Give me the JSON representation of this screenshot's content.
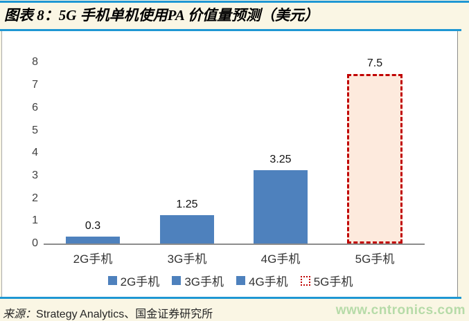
{
  "header": {
    "title": "图表 8：5G 手机单机使用PA 价值量预测（美元）"
  },
  "footer": {
    "source_prefix": "来源：",
    "source_body": "Strategy Analytics、国金证券研究所",
    "watermark": "www.cntronics.com"
  },
  "chart_data": {
    "type": "bar",
    "title": "5G 手机单机使用PA 价值量预测（美元）",
    "categories": [
      "2G手机",
      "3G手机",
      "4G手机",
      "5G手机"
    ],
    "values": [
      0.3,
      1.25,
      3.25,
      7.5
    ],
    "value_labels": [
      "0.3",
      "1.25",
      "3.25",
      "7.5"
    ],
    "xlabel": "",
    "ylabel": "",
    "ylim": [
      0,
      8
    ],
    "yticks": [
      0,
      1,
      2,
      3,
      4,
      5,
      6,
      7,
      8
    ],
    "grid": false,
    "legend_position": "bottom",
    "legend": [
      {
        "label": "2G手机",
        "style": "solid"
      },
      {
        "label": "3G手机",
        "style": "solid"
      },
      {
        "label": "4G手机",
        "style": "solid"
      },
      {
        "label": "5G手机",
        "style": "forecast"
      }
    ],
    "bar_styles": [
      "solid",
      "solid",
      "solid",
      "forecast"
    ],
    "colors": {
      "bar_fill": "#4e81bd",
      "forecast_fill": "#fdeadd",
      "forecast_border": "#c00000",
      "rule_blue": "#1e97d3",
      "background": "#faf6e4",
      "axis": "#8c8c8c",
      "watermark_green": "#b6dba8"
    }
  }
}
